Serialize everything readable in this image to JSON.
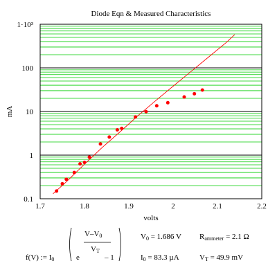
{
  "chart_data": {
    "type": "scatter",
    "title": "Diode Eqn & Measured Characteristics",
    "xlabel": "volts",
    "ylabel": "mA",
    "xlim": [
      1.7,
      2.2
    ],
    "ylim": [
      0.1,
      1000
    ],
    "y_scale": "log",
    "grid": true,
    "colors": {
      "grid": "#00cc00",
      "decade_grid": "#000000",
      "data": "#ff0000",
      "fit_line": "#ff0000"
    },
    "x_ticks": [
      "1.7",
      "1.8",
      "1.9",
      "2",
      "2.1",
      "2.2"
    ],
    "x_tick_values": [
      1.7,
      1.8,
      1.9,
      2.0,
      2.1,
      2.2
    ],
    "y_ticks": [
      "0.1",
      "1",
      "10",
      "100",
      "1·10³"
    ],
    "y_tick_values": [
      0.1,
      1,
      10,
      100,
      1000
    ],
    "series": [
      {
        "kind": "scatter",
        "x": [
          1.737,
          1.75,
          1.759,
          1.777,
          1.79,
          1.8,
          1.811,
          1.836,
          1.856,
          1.874,
          1.884,
          1.915,
          1.939,
          1.963,
          1.988,
          2.025,
          2.048,
          2.066
        ],
        "y": [
          0.15,
          0.22,
          0.28,
          0.4,
          0.63,
          0.68,
          0.9,
          1.8,
          2.6,
          3.8,
          4.1,
          7.5,
          9.9,
          13.5,
          15.9,
          21.5,
          25.5,
          31.0
        ]
      },
      {
        "kind": "line",
        "x": [
          1.729,
          1.76,
          1.8,
          1.84,
          1.88,
          1.92,
          1.96,
          2.0,
          2.04,
          2.08,
          2.12,
          2.139
        ],
        "y": [
          0.13,
          0.25,
          0.62,
          1.5,
          3.4,
          7.9,
          17.5,
          38,
          82,
          177,
          382,
          580
        ]
      }
    ]
  },
  "equation": {
    "lhs": "f(V) := I",
    "lhs_sub": "0",
    "e": "e",
    "numerator": "V–V",
    "numerator_sub": "0",
    "denominator": "V",
    "denominator_sub": "T",
    "tail": "– 1"
  },
  "params": {
    "v0": "V",
    "v0_sub": "0",
    "v0_value": " = 1.686 V",
    "r": "R",
    "r_sub": "ammeter",
    "r_value": " = 2.1 Ω",
    "i0": "I",
    "i0_sub": "0",
    "i0_value": " = 83.3 µA",
    "vt": "V",
    "vt_sub": "T",
    "vt_value": " = 49.9 mV"
  }
}
